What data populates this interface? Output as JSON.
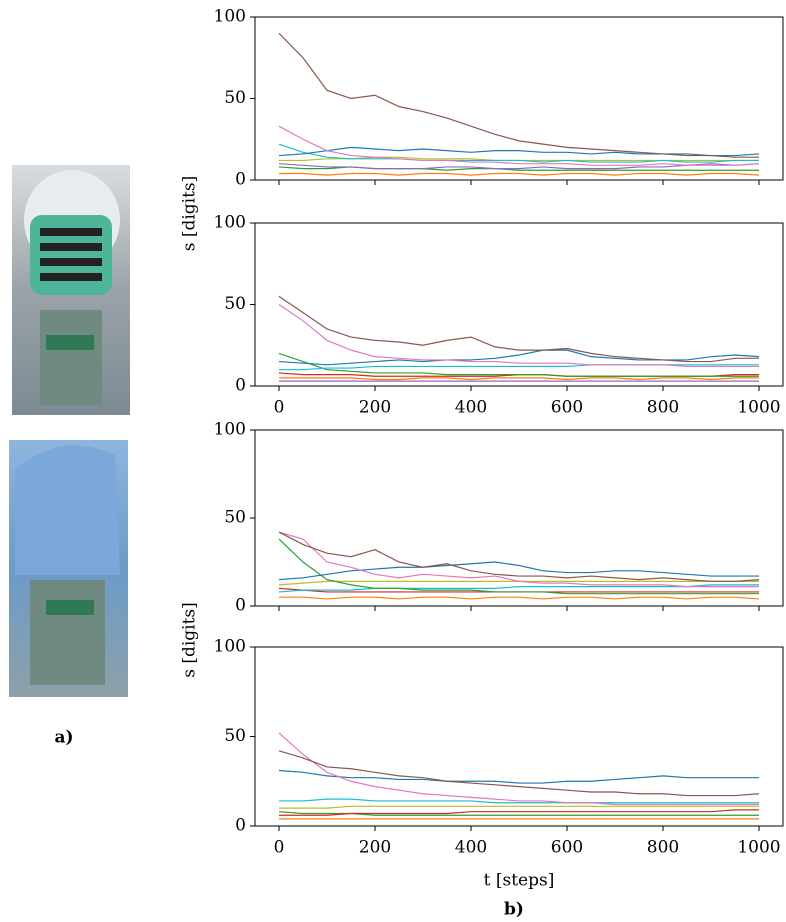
{
  "panel_labels": [
    "a)",
    "b)"
  ],
  "chart_data": [
    {
      "type": "line",
      "xlim": [
        -50,
        1050
      ],
      "ylim": [
        0,
        100
      ],
      "xticks": [
        0,
        200,
        400,
        600,
        800,
        1000
      ],
      "yticks": [
        0,
        50,
        100
      ],
      "xtick_labels": false,
      "ylabel": "s [digits]",
      "x": [
        0,
        50,
        100,
        150,
        200,
        250,
        300,
        350,
        400,
        450,
        500,
        550,
        600,
        650,
        700,
        750,
        800,
        850,
        900,
        950,
        1000
      ],
      "series": [
        {
          "color": "#ff7f0e",
          "values": [
            4,
            4,
            3,
            4,
            4,
            3,
            4,
            4,
            3,
            4,
            4,
            3,
            4,
            4,
            3,
            4,
            4,
            3,
            4,
            4,
            3
          ]
        },
        {
          "color": "#2ca02c",
          "values": [
            8,
            7,
            7,
            8,
            7,
            7,
            7,
            6,
            7,
            7,
            6,
            6,
            6,
            6,
            6,
            6,
            6,
            6,
            6,
            6,
            6
          ]
        },
        {
          "color": "#9467bd",
          "values": [
            10,
            9,
            8,
            8,
            7,
            7,
            7,
            8,
            8,
            7,
            7,
            8,
            7,
            7,
            7,
            8,
            8,
            9,
            10,
            9,
            10
          ]
        },
        {
          "color": "#bcbd22",
          "values": [
            12,
            12,
            13,
            13,
            14,
            14,
            13,
            13,
            13,
            12,
            12,
            12,
            12,
            12,
            12,
            12,
            12,
            12,
            12,
            12,
            12
          ]
        },
        {
          "color": "#17becf",
          "values": [
            22,
            17,
            14,
            13,
            13,
            13,
            12,
            12,
            12,
            12,
            12,
            11,
            12,
            11,
            11,
            11,
            12,
            11,
            11,
            12,
            12
          ]
        },
        {
          "color": "#1f77b4",
          "values": [
            15,
            16,
            18,
            20,
            19,
            18,
            19,
            18,
            17,
            18,
            18,
            17,
            17,
            16,
            17,
            16,
            16,
            16,
            15,
            15,
            16
          ]
        },
        {
          "color": "#e377c2",
          "values": [
            33,
            25,
            18,
            15,
            14,
            13,
            12,
            12,
            11,
            11,
            10,
            10,
            10,
            9,
            9,
            9,
            10,
            9,
            9,
            9,
            10
          ]
        },
        {
          "color": "#8c564b",
          "values": [
            90,
            75,
            55,
            50,
            52,
            45,
            42,
            38,
            33,
            28,
            24,
            22,
            20,
            19,
            18,
            17,
            16,
            15,
            15,
            14,
            14
          ]
        }
      ]
    },
    {
      "type": "line",
      "xlim": [
        -50,
        1050
      ],
      "ylim": [
        0,
        100
      ],
      "xticks": [
        0,
        200,
        400,
        600,
        800,
        1000
      ],
      "yticks": [
        0,
        50,
        100
      ],
      "xtick_labels": true,
      "x": [
        0,
        50,
        100,
        150,
        200,
        250,
        300,
        350,
        400,
        450,
        500,
        550,
        600,
        650,
        700,
        750,
        800,
        850,
        900,
        950,
        1000
      ],
      "series": [
        {
          "color": "#9467bd",
          "values": [
            3,
            3,
            3,
            3,
            3,
            3,
            3,
            3,
            3,
            3,
            3,
            3,
            3,
            3,
            3,
            3,
            3,
            3,
            3,
            3,
            3
          ]
        },
        {
          "color": "#ff7f0e",
          "values": [
            5,
            5,
            5,
            5,
            4,
            4,
            5,
            5,
            4,
            5,
            5,
            5,
            4,
            5,
            5,
            4,
            5,
            5,
            4,
            5,
            5
          ]
        },
        {
          "color": "#d62728",
          "values": [
            8,
            7,
            7,
            7,
            6,
            6,
            6,
            6,
            6,
            6,
            7,
            7,
            6,
            6,
            6,
            6,
            6,
            6,
            6,
            7,
            7
          ]
        },
        {
          "color": "#2ca02c",
          "values": [
            20,
            15,
            10,
            9,
            8,
            8,
            8,
            7,
            7,
            7,
            7,
            7,
            6,
            6,
            6,
            6,
            6,
            6,
            6,
            6,
            6
          ]
        },
        {
          "color": "#17becf",
          "values": [
            10,
            10,
            11,
            11,
            12,
            12,
            12,
            12,
            12,
            12,
            12,
            12,
            12,
            13,
            13,
            13,
            13,
            13,
            13,
            13,
            13
          ]
        },
        {
          "color": "#1f77b4",
          "values": [
            15,
            14,
            13,
            14,
            15,
            16,
            15,
            16,
            16,
            17,
            19,
            22,
            22,
            18,
            17,
            16,
            16,
            16,
            18,
            19,
            18
          ]
        },
        {
          "color": "#e377c2",
          "values": [
            50,
            40,
            28,
            22,
            18,
            17,
            16,
            16,
            15,
            15,
            14,
            14,
            14,
            13,
            13,
            13,
            13,
            12,
            12,
            12,
            12
          ]
        },
        {
          "color": "#8c564b",
          "values": [
            55,
            45,
            35,
            30,
            28,
            27,
            25,
            28,
            30,
            24,
            22,
            22,
            23,
            20,
            18,
            17,
            16,
            15,
            15,
            17,
            17
          ]
        }
      ]
    },
    {
      "type": "line",
      "xlim": [
        -50,
        1050
      ],
      "ylim": [
        0,
        100
      ],
      "xticks": [
        0,
        200,
        400,
        600,
        800,
        1000
      ],
      "yticks": [
        0,
        50,
        100
      ],
      "xtick_labels": false,
      "ylabel": "s [digits]",
      "x": [
        0,
        50,
        100,
        150,
        200,
        250,
        300,
        350,
        400,
        450,
        500,
        550,
        600,
        650,
        700,
        750,
        800,
        850,
        900,
        950,
        1000
      ],
      "series": [
        {
          "color": "#ff7f0e",
          "values": [
            5,
            5,
            4,
            5,
            5,
            4,
            5,
            5,
            4,
            5,
            5,
            4,
            5,
            5,
            4,
            5,
            5,
            4,
            5,
            5,
            4
          ]
        },
        {
          "color": "#d62728",
          "values": [
            10,
            9,
            8,
            8,
            8,
            8,
            8,
            8,
            8,
            8,
            8,
            8,
            8,
            8,
            8,
            8,
            8,
            8,
            8,
            8,
            8
          ]
        },
        {
          "color": "#17becf",
          "values": [
            8,
            9,
            9,
            9,
            10,
            10,
            10,
            10,
            10,
            10,
            11,
            11,
            11,
            11,
            11,
            11,
            11,
            11,
            12,
            12,
            12
          ]
        },
        {
          "color": "#bcbd22",
          "values": [
            12,
            13,
            14,
            14,
            14,
            14,
            14,
            14,
            14,
            14,
            14,
            14,
            14,
            14,
            14,
            14,
            14,
            14,
            14,
            14,
            14
          ]
        },
        {
          "color": "#2ca02c",
          "values": [
            38,
            25,
            15,
            12,
            10,
            10,
            9,
            9,
            9,
            8,
            8,
            8,
            7,
            7,
            7,
            7,
            7,
            7,
            7,
            7,
            7
          ]
        },
        {
          "color": "#1f77b4",
          "values": [
            15,
            16,
            18,
            20,
            21,
            22,
            22,
            23,
            24,
            25,
            23,
            20,
            19,
            19,
            20,
            20,
            19,
            18,
            17,
            17,
            17
          ]
        },
        {
          "color": "#e377c2",
          "values": [
            42,
            38,
            25,
            22,
            18,
            16,
            18,
            17,
            16,
            17,
            14,
            13,
            13,
            12,
            12,
            12,
            12,
            11,
            11,
            11,
            11
          ]
        },
        {
          "color": "#8c564b",
          "values": [
            42,
            35,
            30,
            28,
            32,
            25,
            22,
            24,
            20,
            18,
            17,
            17,
            16,
            17,
            16,
            15,
            16,
            15,
            14,
            14,
            15
          ]
        }
      ]
    },
    {
      "type": "line",
      "xlim": [
        -50,
        1050
      ],
      "ylim": [
        0,
        100
      ],
      "xticks": [
        0,
        200,
        400,
        600,
        800,
        1000
      ],
      "yticks": [
        0,
        50,
        100
      ],
      "xtick_labels": true,
      "xlabel": "t [steps]",
      "x": [
        0,
        50,
        100,
        150,
        200,
        250,
        300,
        350,
        400,
        450,
        500,
        550,
        600,
        650,
        700,
        750,
        800,
        850,
        900,
        950,
        1000
      ],
      "series": [
        {
          "color": "#ff7f0e",
          "values": [
            4,
            4,
            4,
            4,
            4,
            4,
            4,
            4,
            4,
            4,
            4,
            4,
            4,
            4,
            4,
            4,
            4,
            4,
            4,
            4,
            4
          ]
        },
        {
          "color": "#2ca02c",
          "values": [
            8,
            7,
            7,
            7,
            6,
            6,
            6,
            6,
            6,
            6,
            6,
            6,
            6,
            6,
            6,
            6,
            6,
            6,
            6,
            6,
            6
          ]
        },
        {
          "color": "#d62728",
          "values": [
            6,
            6,
            6,
            7,
            7,
            7,
            7,
            7,
            8,
            8,
            8,
            8,
            8,
            8,
            8,
            8,
            8,
            8,
            8,
            9,
            9
          ]
        },
        {
          "color": "#bcbd22",
          "values": [
            10,
            10,
            10,
            11,
            11,
            11,
            11,
            11,
            11,
            11,
            11,
            11,
            11,
            11,
            11,
            11,
            11,
            11,
            11,
            11,
            11
          ]
        },
        {
          "color": "#17becf",
          "values": [
            14,
            14,
            15,
            15,
            14,
            14,
            14,
            14,
            14,
            13,
            13,
            13,
            13,
            13,
            13,
            13,
            13,
            13,
            13,
            13,
            13
          ]
        },
        {
          "color": "#1f77b4",
          "values": [
            31,
            30,
            28,
            27,
            27,
            26,
            26,
            25,
            25,
            25,
            24,
            24,
            25,
            25,
            26,
            27,
            28,
            27,
            27,
            27,
            27
          ]
        },
        {
          "color": "#e377c2",
          "values": [
            52,
            40,
            30,
            25,
            22,
            20,
            18,
            17,
            16,
            15,
            14,
            14,
            13,
            13,
            12,
            12,
            12,
            12,
            12,
            12,
            12
          ]
        },
        {
          "color": "#8c564b",
          "values": [
            42,
            38,
            33,
            32,
            30,
            28,
            27,
            25,
            24,
            23,
            22,
            21,
            20,
            19,
            19,
            18,
            18,
            17,
            17,
            17,
            18
          ]
        }
      ]
    }
  ]
}
